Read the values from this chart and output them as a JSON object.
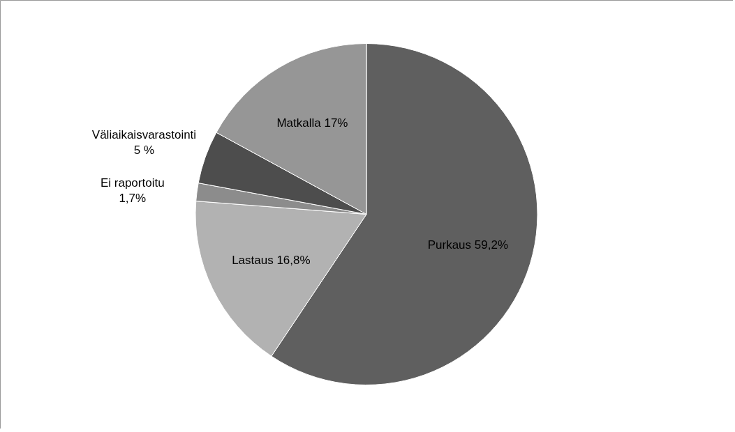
{
  "chart_data": {
    "type": "pie",
    "categories": [
      "Purkaus",
      "Lastaus",
      "Ei raportoitu",
      "Väliaikaisvarastointi",
      "Matkalla"
    ],
    "values": [
      59.2,
      16.8,
      1.7,
      5,
      17
    ],
    "value_labels": [
      "59,2%",
      "16,8%",
      "1,7%",
      "5 %",
      "17%"
    ],
    "colors": [
      "#5f5f5f",
      "#b2b2b2",
      "#8c8c8c",
      "#4d4d4d",
      "#969696"
    ]
  }
}
